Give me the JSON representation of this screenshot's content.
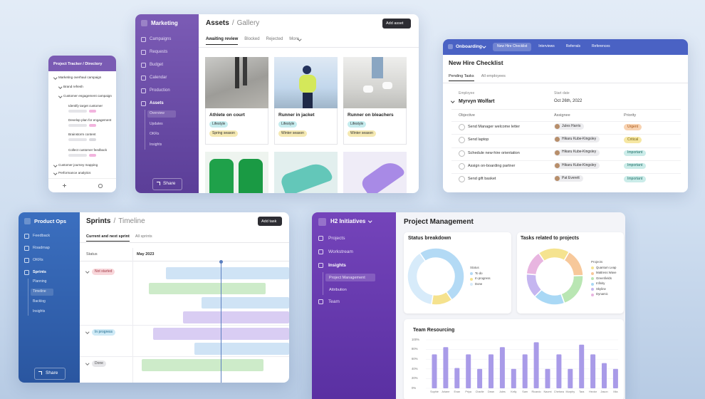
{
  "project_tracker": {
    "title": "Project Tracker / Directory",
    "items": [
      "Marketing overhaul campaign",
      "Brand refresh",
      "Customer engagement campaign",
      "Identify target customer",
      "Develop plan for engagement",
      "Brainstorm content",
      "Collect customer feedback",
      "Customer journey mapping",
      "Performance analytics"
    ]
  },
  "marketing": {
    "workspace": "Marketing",
    "nav": [
      "Campaigns",
      "Requests",
      "Budget",
      "Calendar",
      "Production",
      "Assets"
    ],
    "subnav": [
      "Overview",
      "Updates",
      "OKRs",
      "Insights"
    ],
    "share": "Share",
    "breadcrumb": [
      "Assets",
      "/",
      "Gallery"
    ],
    "add_button": "Add asset",
    "tabs": [
      "Awaiting review",
      "Blocked",
      "Rejected",
      "More"
    ],
    "cards": [
      {
        "title": "Athlete on court",
        "tags": [
          "Lifestyle",
          "Spring season"
        ]
      },
      {
        "title": "Runner in jacket",
        "tags": [
          "Lifestyle",
          "Winter season"
        ]
      },
      {
        "title": "Runner on bleachers",
        "tags": [
          "Lifestyle",
          "Winter season"
        ]
      }
    ]
  },
  "onboarding": {
    "workspace": "Onboarding",
    "tabs": [
      "New Hire Checklist",
      "Interviews",
      "Referrals",
      "References"
    ],
    "title": "New Hire Checklist",
    "subtabs": [
      "Pending Tasks",
      "All employees"
    ],
    "employee_label": "Employee",
    "employee": "Myrvyn Wolfart",
    "start_label": "Start date",
    "start_date": "Oct 26th, 2022",
    "columns": [
      "Objective",
      "Assignee",
      "Priority"
    ],
    "rows": [
      [
        "Send Manager welcome letter",
        "Jules Harris",
        "Urgent"
      ],
      [
        "Send laptop",
        "Hikaru Kube-Kingsley",
        "Critical"
      ],
      [
        "Schedule new-hire orientation",
        "Hikaru Kube-Kingsley",
        "Important"
      ],
      [
        "Assign on-boarding partner",
        "Hikaru Kube-Kingsley",
        "Important"
      ],
      [
        "Send gift basket",
        "Pat Everett",
        "Important"
      ]
    ]
  },
  "product_ops": {
    "workspace": "Product Ops",
    "nav": [
      "Feedback",
      "Roadmap",
      "OKRs",
      "Sprints"
    ],
    "subnav": [
      "Planning",
      "Timeline",
      "Backlog",
      "Insights"
    ],
    "share": "Share",
    "breadcrumb": [
      "Sprints",
      "/",
      "Timeline"
    ],
    "add_button": "Add task",
    "tabs": [
      "Current and next sprint",
      "All sprints"
    ],
    "status_label": "Status",
    "month": "May 2023",
    "groups": [
      "Not started",
      "In progress",
      "Done"
    ]
  },
  "h2": {
    "workspace": "H2 Initiatives",
    "nav": [
      "Projects",
      "Workstream",
      "Insights"
    ],
    "subnav": [
      "Project Management",
      "Attribution"
    ],
    "nav_bottom": "Team",
    "title": "Project Management"
  },
  "chart_data": [
    {
      "type": "donut",
      "title": "Status breakdown",
      "legend_title": "Status",
      "categories": [
        "To do",
        "In progress",
        "Done"
      ],
      "values": [
        50,
        12,
        38
      ],
      "colors": [
        "#b3daf5",
        "#f5e28e",
        "#d7ebfa"
      ]
    },
    {
      "type": "donut",
      "title": "Tasks related to projects",
      "legend_title": "Projects",
      "categories": [
        "Quantum Leap",
        "Mattress Wave",
        "Greenfields",
        "Infinity",
        "Skyline",
        "Dynamic"
      ],
      "values": [
        18,
        16,
        20,
        18,
        14,
        14
      ],
      "colors": [
        "#f5e38f",
        "#f7c89a",
        "#b9e6b3",
        "#a9d8f5",
        "#c5b6f0",
        "#e8b5e0"
      ]
    },
    {
      "type": "bar",
      "title": "Team Resourcing",
      "categories": [
        "Sophie",
        "Ariane",
        "Evan",
        "Priya",
        "Charlie",
        "Dean",
        "Jules",
        "Kelly",
        "Sam",
        "Ricardo",
        "Naomi",
        "Chelsea",
        "Murphy",
        "Tara",
        "Hector",
        "Jason",
        "Mia"
      ],
      "values": [
        70,
        85,
        42,
        70,
        40,
        70,
        85,
        40,
        70,
        95,
        40,
        70,
        40,
        90,
        70,
        52,
        40
      ],
      "color": "#a99be8",
      "ylim": [
        0,
        100
      ],
      "yticks": [
        {
          "value": 0,
          "label": "0%"
        },
        {
          "value": 20,
          "label": "20%"
        },
        {
          "value": 40,
          "label": "40%"
        },
        {
          "value": 60,
          "label": "60%"
        },
        {
          "value": 80,
          "label": "80%"
        },
        {
          "value": 100,
          "label": "100%"
        }
      ],
      "grid": true
    }
  ]
}
